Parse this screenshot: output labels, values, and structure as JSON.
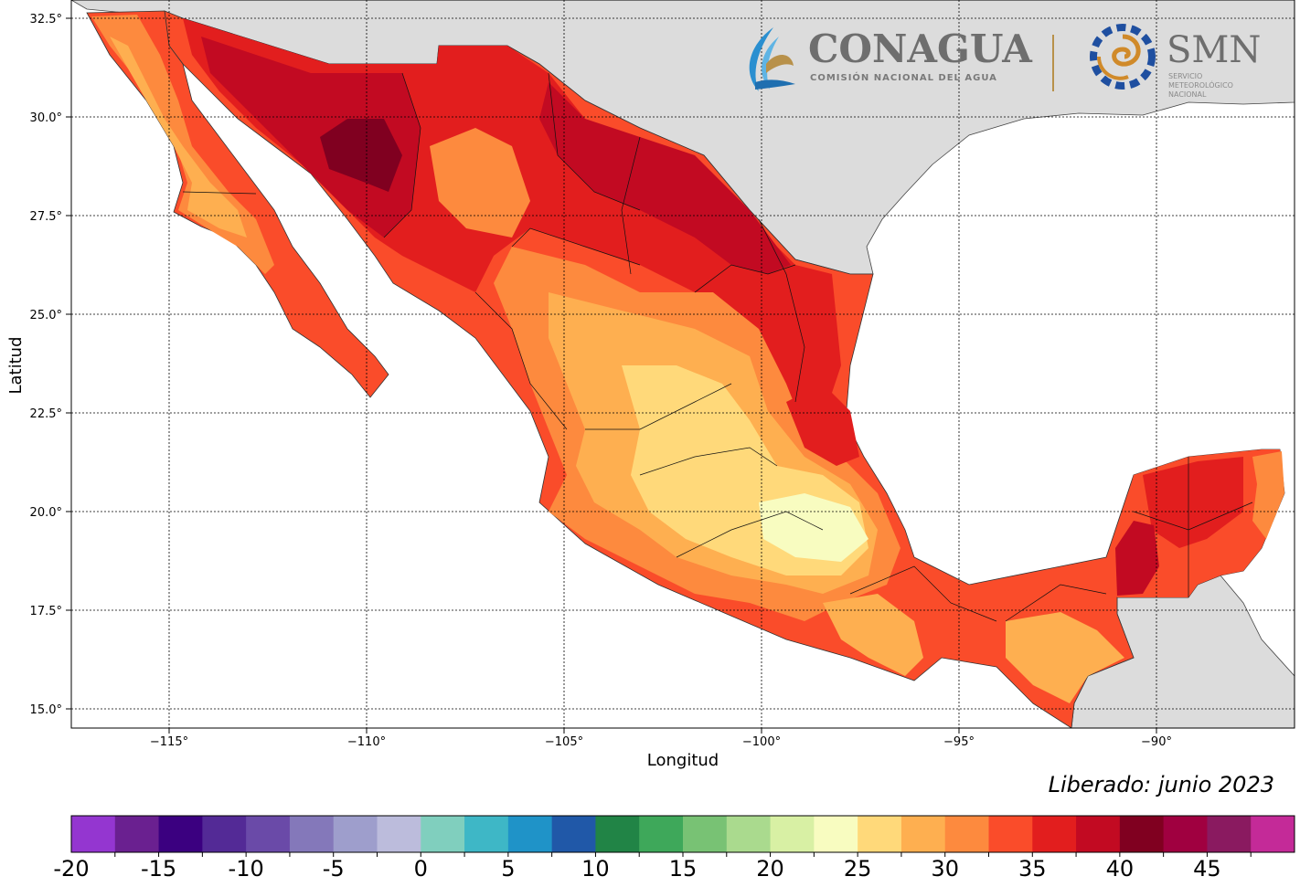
{
  "map": {
    "x_axis_label": "Longitud",
    "y_axis_label": "Latitud",
    "x_ticks": [
      "−115°",
      "−110°",
      "−105°",
      "−100°",
      "−95°",
      "−90°"
    ],
    "y_ticks": [
      "32.5°",
      "30.0°",
      "27.5°",
      "25.0°",
      "22.5°",
      "20.0°",
      "17.5°",
      "15.0°"
    ],
    "colors": {
      "land_outside": "#dcdcdc",
      "water": "#ffffff"
    }
  },
  "logo": {
    "conagua_name": "CONAGUA",
    "conagua_subtitle": "COMISIÓN NACIONAL DEL AGUA",
    "smn_name": "SMN",
    "smn_subtitle_1": "SERVICIO",
    "smn_subtitle_2": "METEOROLÓGICO",
    "smn_subtitle_3": "NACIONAL"
  },
  "released": "Liberado: junio 2023",
  "colorbar": {
    "labels": [
      "-20",
      "-15",
      "-10",
      "-5",
      "0",
      "5",
      "10",
      "15",
      "20",
      "25",
      "30",
      "35",
      "40",
      "45"
    ],
    "colors": [
      "#9436d0",
      "#6a2090",
      "#3b0080",
      "#532a96",
      "#6a4aa8",
      "#8478ba",
      "#9e9ecc",
      "#bcbcdc",
      "#80cfbe",
      "#3eb7c6",
      "#1f93c8",
      "#2058a8",
      "#218446",
      "#3ea85a",
      "#78c274",
      "#aada8e",
      "#d8f0a4",
      "#f8fcc0",
      "#ffd97a",
      "#feaf50",
      "#fd8a3e",
      "#fa4c2a",
      "#e21e1e",
      "#c20a22",
      "#800020",
      "#a00040",
      "#8a1a60",
      "#c42a98"
    ]
  }
}
